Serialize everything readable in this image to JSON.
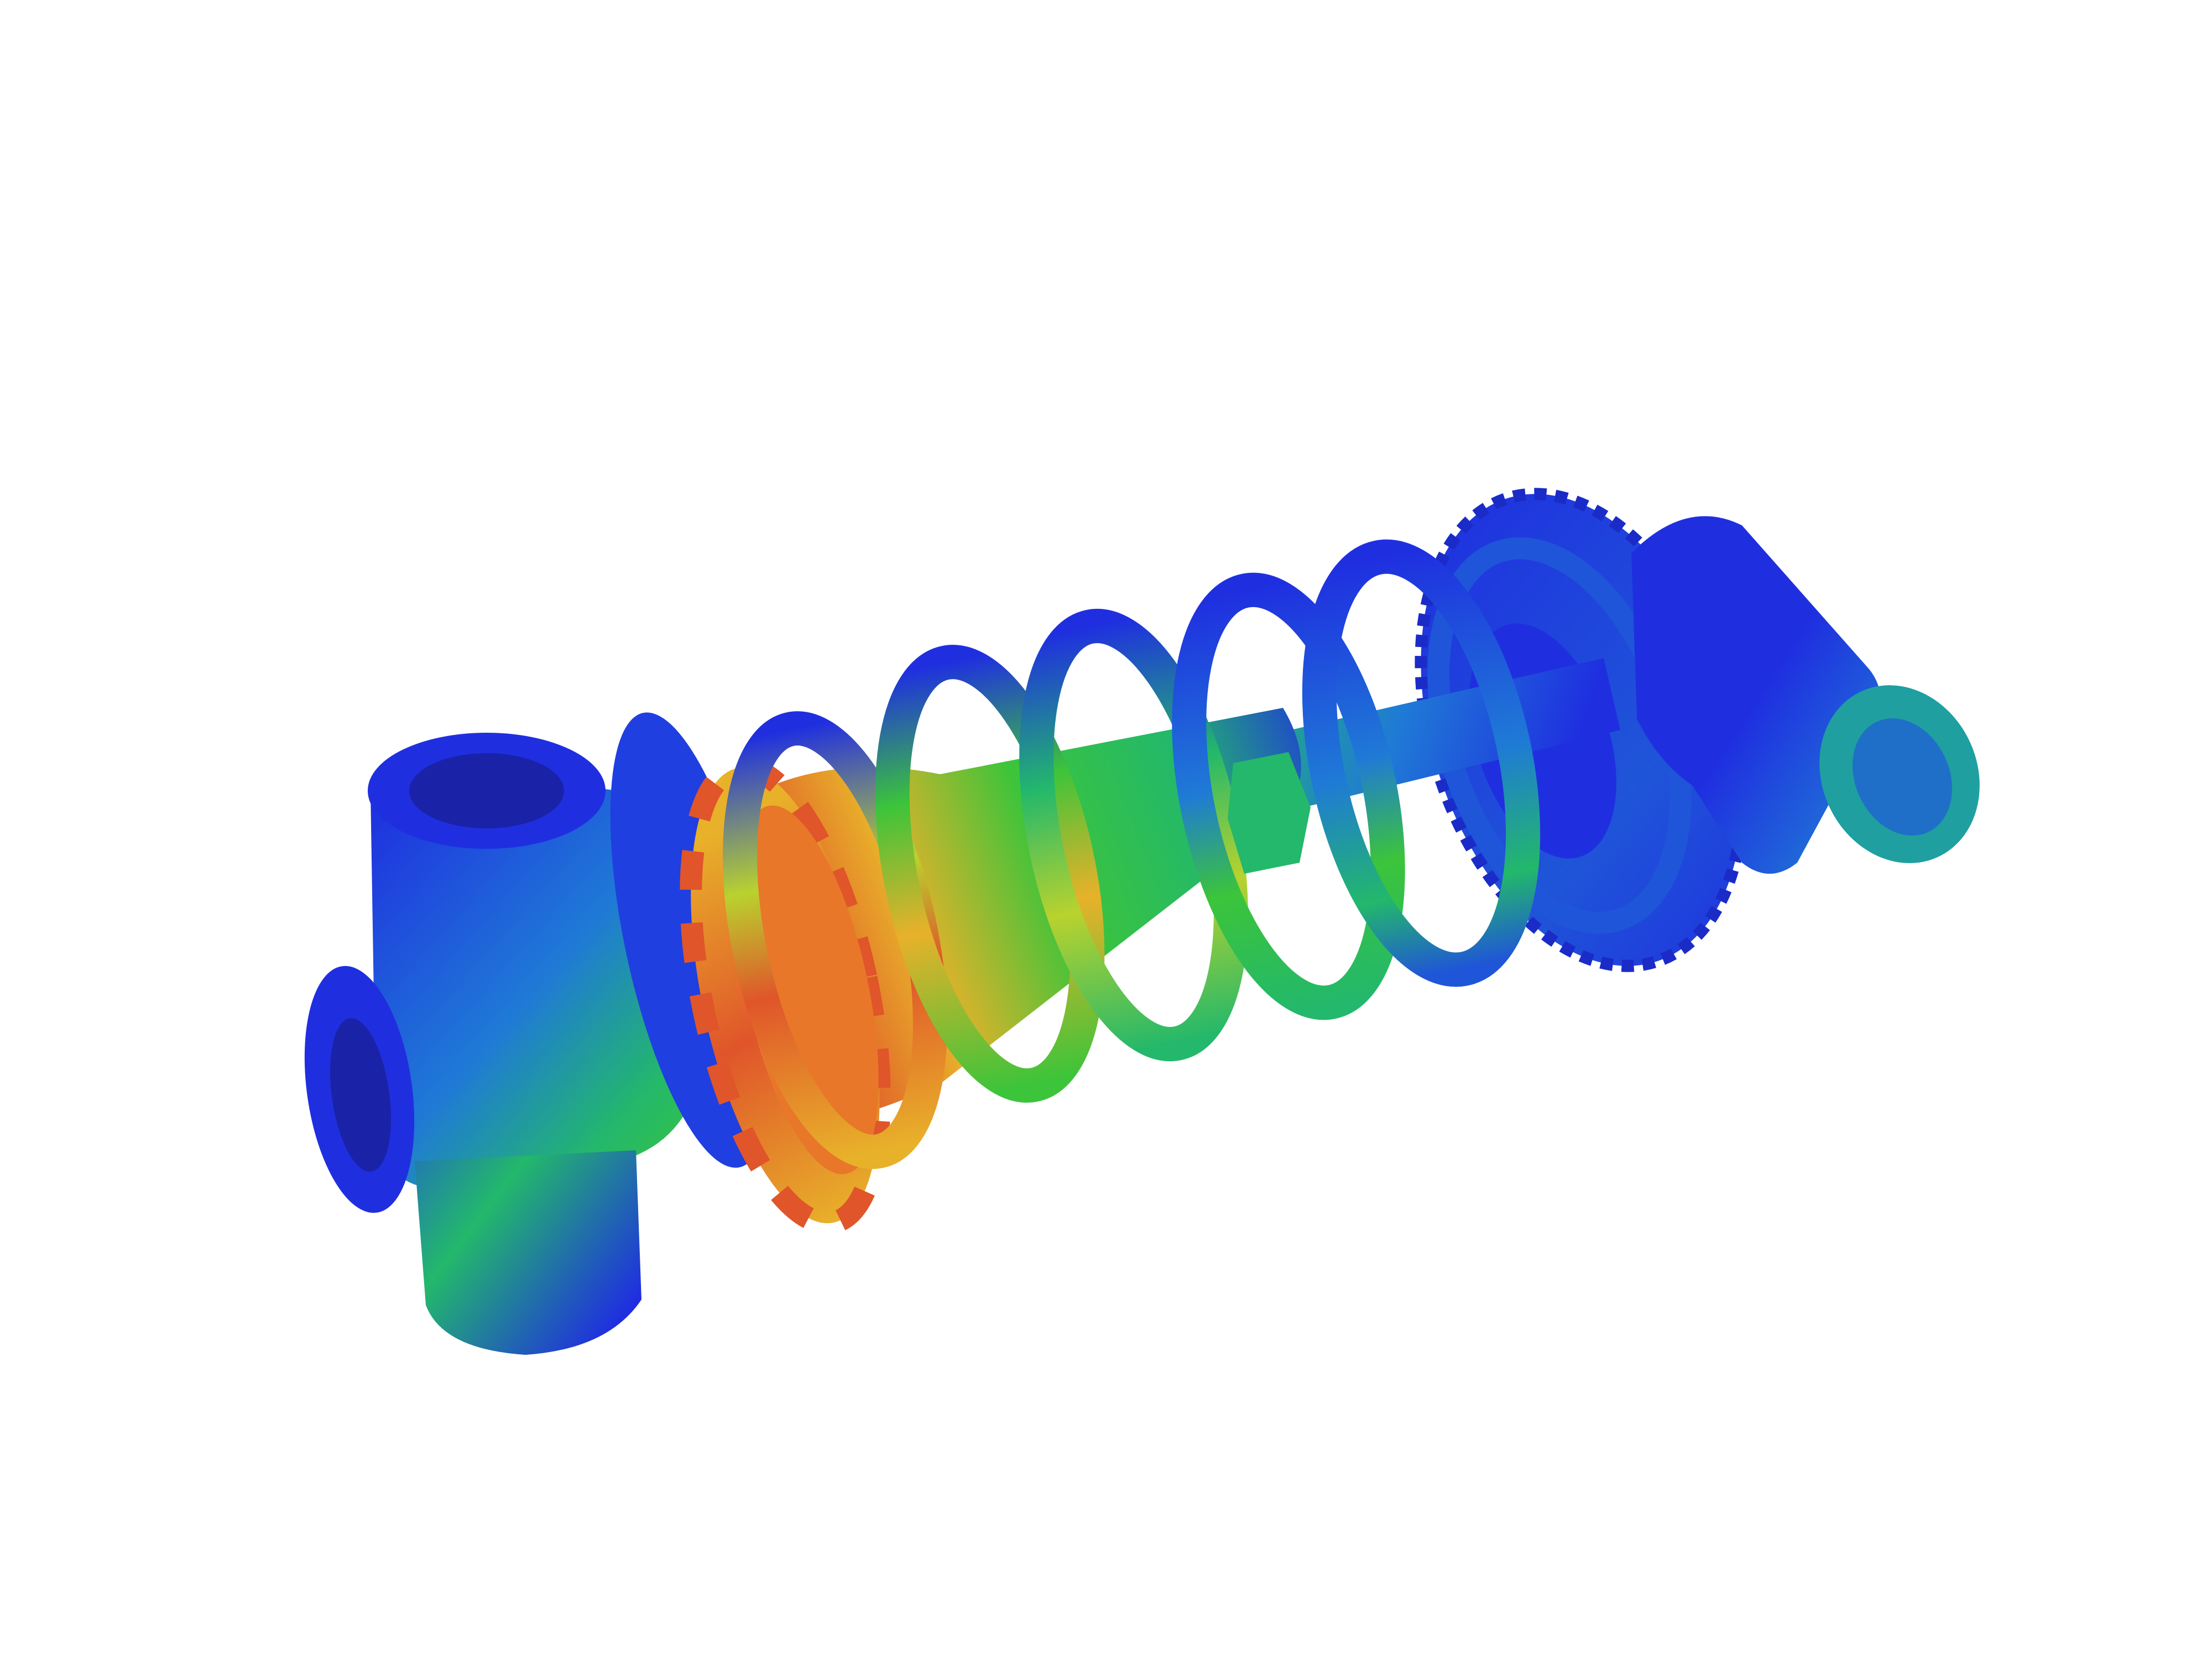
{
  "scene": {
    "background": "#ffffff",
    "subject": "shock-absorber-stress-render",
    "colormap": [
      "#1f2fe0",
      "#1f7ad6",
      "#23b86b",
      "#3cc43a",
      "#b9d22e",
      "#e8b12a",
      "#e0552a"
    ]
  }
}
